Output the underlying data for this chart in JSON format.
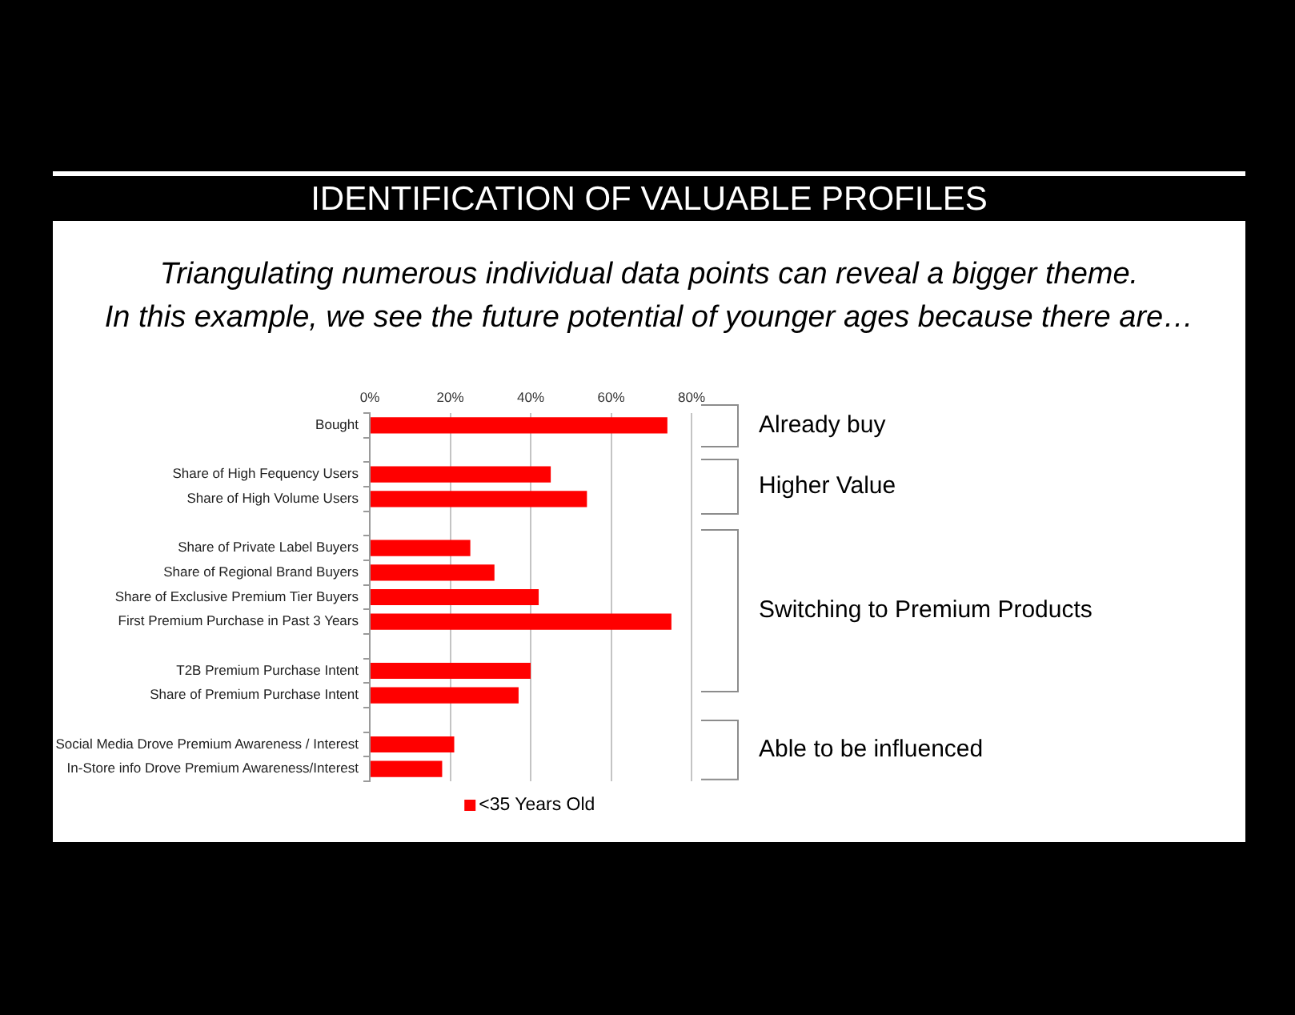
{
  "chart_data": {
    "type": "bar",
    "orientation": "horizontal",
    "title": "IDENTIFICATION OF VALUABLE PROFILES",
    "subtitle": "Triangulating numerous individual data points can reveal a bigger theme.\nIn this example, we see the future potential of younger ages because there are…",
    "categories": [
      "Bought",
      null,
      "Share of High Fequency Users",
      "Share of High Volume Users",
      null,
      "Share of Private Label Buyers",
      "Share of Regional Brand Buyers",
      "Share of Exclusive Premium Tier Buyers",
      "First Premium Purchase in Past 3 Years",
      null,
      "T2B Premium Purchase Intent",
      "Share of Premium Purchase Intent",
      null,
      "Social Media Drove Premium Awareness / Interest",
      "In-Store info Drove Premium Awareness/Interest"
    ],
    "series": [
      {
        "name": "<35 Years Old",
        "color": "#ff0000",
        "values": [
          74,
          null,
          45,
          54,
          null,
          25,
          31,
          42,
          75,
          null,
          40,
          37,
          null,
          21,
          18
        ]
      }
    ],
    "xlim": [
      0,
      80
    ],
    "xticks": [
      {
        "value": 0,
        "label": "0%"
      },
      {
        "value": 20,
        "label": "20%"
      },
      {
        "value": 40,
        "label": "40%"
      },
      {
        "value": 60,
        "label": "60%"
      },
      {
        "value": 80,
        "label": "80%"
      }
    ],
    "grid": "x",
    "legend": "bottom",
    "annotations": [
      "Already buy",
      "Higher Value",
      "Switching to Premium Products",
      "Able to be influenced"
    ]
  }
}
